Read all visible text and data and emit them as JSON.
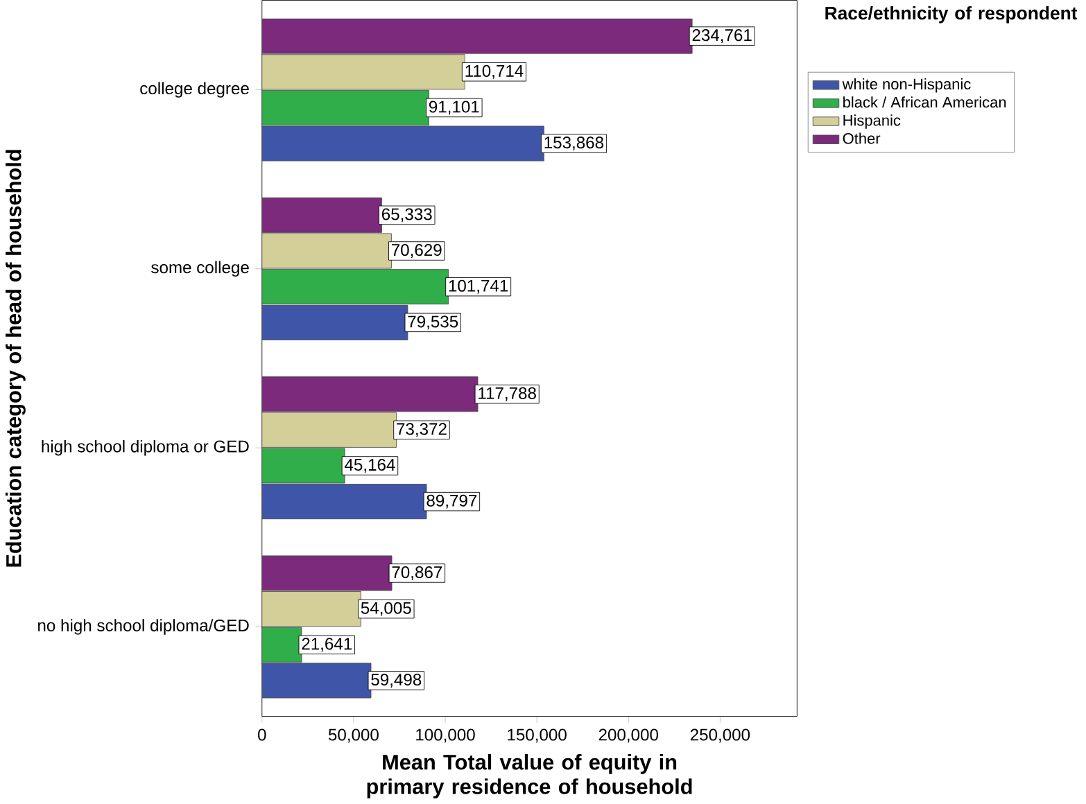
{
  "chart_data": {
    "type": "bar",
    "orientation": "horizontal",
    "xlabel": "Mean Total value of equity in primary residence of household",
    "ylabel": "Education category of head of household",
    "legend_title": "Race/ethnicity of respondent",
    "legend": "top right",
    "grid": false,
    "categories": [
      "college degree",
      "some college",
      "high school diploma or GED",
      "no high school diploma/GED"
    ],
    "xlim": [
      0,
      292000
    ],
    "xticks": [
      0,
      {
        "value": 50000,
        "label": "50,000"
      },
      {
        "value": 100000,
        "label": "100,000"
      },
      {
        "value": 150000,
        "label": "150,000"
      },
      {
        "value": 200000,
        "label": "200,000"
      },
      {
        "value": 250000,
        "label": "250,000"
      }
    ],
    "series": [
      {
        "name": "white non-Hispanic",
        "color": "#3f56a8",
        "values": [
          153868,
          79535,
          89797,
          59498
        ],
        "value_labels": [
          "153,868",
          "79,535",
          "89,797",
          "59,498"
        ]
      },
      {
        "name": "black / African American",
        "color": "#2fae4a",
        "values": [
          91101,
          101741,
          45164,
          21641
        ],
        "value_labels": [
          "91,101",
          "101,741",
          "45,164",
          "21,641"
        ]
      },
      {
        "name": "Hispanic",
        "color": "#d4cf98",
        "values": [
          110714,
          70629,
          73372,
          54005
        ],
        "value_labels": [
          "110,714",
          "70,629",
          "73,372",
          "54,005"
        ]
      },
      {
        "name": "Other",
        "color": "#7c2a7c",
        "values": [
          234761,
          65333,
          117788,
          70867
        ],
        "value_labels": [
          "234,761",
          "65,333",
          "117,788",
          "70,867"
        ]
      }
    ]
  }
}
